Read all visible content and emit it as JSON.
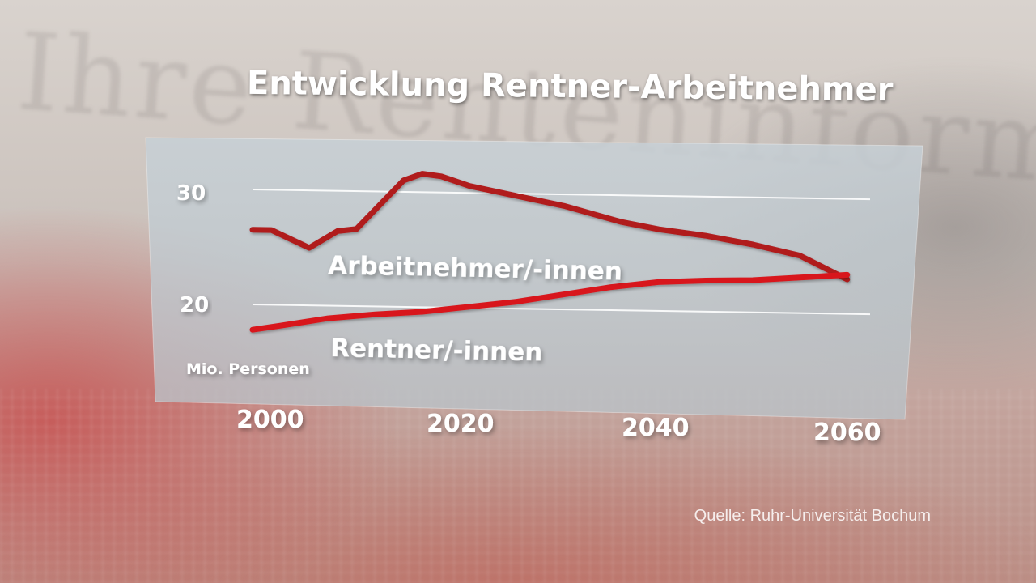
{
  "chart_data": {
    "type": "line",
    "title": "Entwicklung Rentner-Arbeitnehmer",
    "ylabel": "Mio. Personen",
    "xlabel": "",
    "x_ticks": [
      "2000",
      "2020",
      "2040",
      "2060"
    ],
    "y_ticks": [
      "30",
      "20"
    ],
    "xlim": [
      1997,
      2062
    ],
    "ylim": [
      14,
      35
    ],
    "grid": true,
    "colors": {
      "arbeitnehmer": "#b01a1c",
      "rentner": "#d8191d"
    },
    "series": [
      {
        "name": "Arbeitnehmer/-innen",
        "x": [
          1997,
          1999,
          2003,
          2006,
          2008,
          2013,
          2015,
          2017,
          2020,
          2025,
          2030,
          2036,
          2040,
          2045,
          2050,
          2055,
          2060
        ],
        "y": [
          26.5,
          26.5,
          25.0,
          26.5,
          26.7,
          31.0,
          31.6,
          31.4,
          30.6,
          29.8,
          29.0,
          27.7,
          27.1,
          26.6,
          25.9,
          25.0,
          23.0
        ]
      },
      {
        "name": "Rentner/-innen",
        "x": [
          1997,
          2000,
          2005,
          2010,
          2015,
          2020,
          2025,
          2030,
          2035,
          2040,
          2045,
          2050,
          2055,
          2060
        ],
        "y": [
          17.8,
          18.2,
          18.9,
          19.3,
          19.6,
          20.1,
          20.6,
          21.3,
          22.0,
          22.5,
          22.7,
          22.8,
          23.1,
          23.4
        ]
      }
    ]
  },
  "source": "Quelle: Ruhr-Universität Bochum",
  "background_word": "Ihre Renteninformation"
}
